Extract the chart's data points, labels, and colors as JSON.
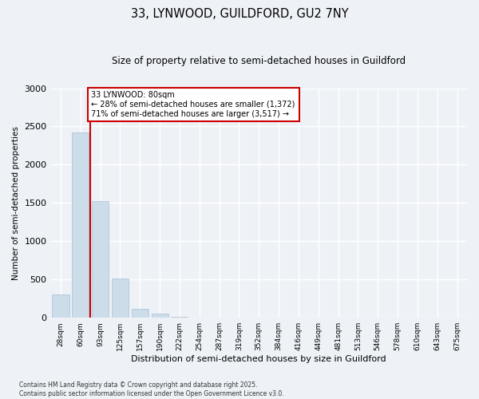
{
  "title": "33, LYNWOOD, GUILDFORD, GU2 7NY",
  "subtitle": "Size of property relative to semi-detached houses in Guildford",
  "xlabel": "Distribution of semi-detached houses by size in Guildford",
  "ylabel": "Number of semi-detached properties",
  "bin_labels": [
    "28sqm",
    "60sqm",
    "93sqm",
    "125sqm",
    "157sqm",
    "190sqm",
    "222sqm",
    "254sqm",
    "287sqm",
    "319sqm",
    "352sqm",
    "384sqm",
    "416sqm",
    "449sqm",
    "481sqm",
    "513sqm",
    "546sqm",
    "578sqm",
    "610sqm",
    "643sqm",
    "675sqm"
  ],
  "bin_values": [
    300,
    2420,
    1530,
    510,
    120,
    50,
    10,
    5,
    2,
    1,
    1,
    0,
    0,
    0,
    0,
    0,
    0,
    0,
    0,
    0,
    0
  ],
  "bar_color": "#ccdce8",
  "bar_edge_color": "#a8c0d4",
  "annotation_title": "33 LYNWOOD: 80sqm",
  "annotation_line1": "← 28% of semi-detached houses are smaller (1,372)",
  "annotation_line2": "71% of semi-detached houses are larger (3,517) →",
  "annotation_box_color": "#ffffff",
  "annotation_box_edge": "#cc0000",
  "red_line_color": "#cc0000",
  "red_line_x": 1.5,
  "ylim": [
    0,
    3000
  ],
  "yticks": [
    0,
    500,
    1000,
    1500,
    2000,
    2500,
    3000
  ],
  "background_color": "#eef2f7",
  "grid_color": "#ffffff",
  "footer_line1": "Contains HM Land Registry data © Crown copyright and database right 2025.",
  "footer_line2": "Contains public sector information licensed under the Open Government Licence v3.0."
}
